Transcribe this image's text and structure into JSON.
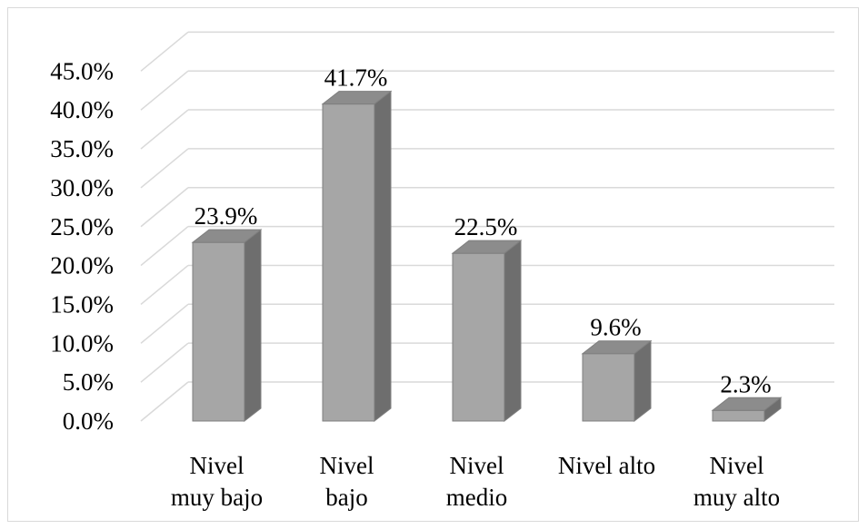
{
  "chart_data": {
    "type": "bar",
    "style": "3d-column",
    "categories": [
      [
        "Nivel",
        "muy bajo"
      ],
      [
        "Nivel",
        "bajo"
      ],
      [
        "Nivel",
        "medio"
      ],
      [
        "Nivel alto"
      ],
      [
        "Nivel",
        "muy alto"
      ]
    ],
    "values": [
      23.9,
      41.7,
      22.5,
      9.6,
      2.3
    ],
    "data_labels": [
      "23.9%",
      "41.7%",
      "22.5%",
      "9.6%",
      "2.3%"
    ],
    "y_ticks": [
      "0.0%",
      "5.0%",
      "10.0%",
      "15.0%",
      "20.0%",
      "25.0%",
      "30.0%",
      "35.0%",
      "40.0%",
      "45.0%"
    ],
    "ylim": [
      0,
      45
    ],
    "title": "",
    "xlabel": "",
    "ylabel": "",
    "grid": true,
    "legend": "none",
    "colors": {
      "bar_front": "#a6a6a6",
      "bar_side": "#6e6e6e",
      "bar_top": "#8c8c8c",
      "bar_edge": "#7f7f7f",
      "grid": "#d9d9d9"
    }
  }
}
